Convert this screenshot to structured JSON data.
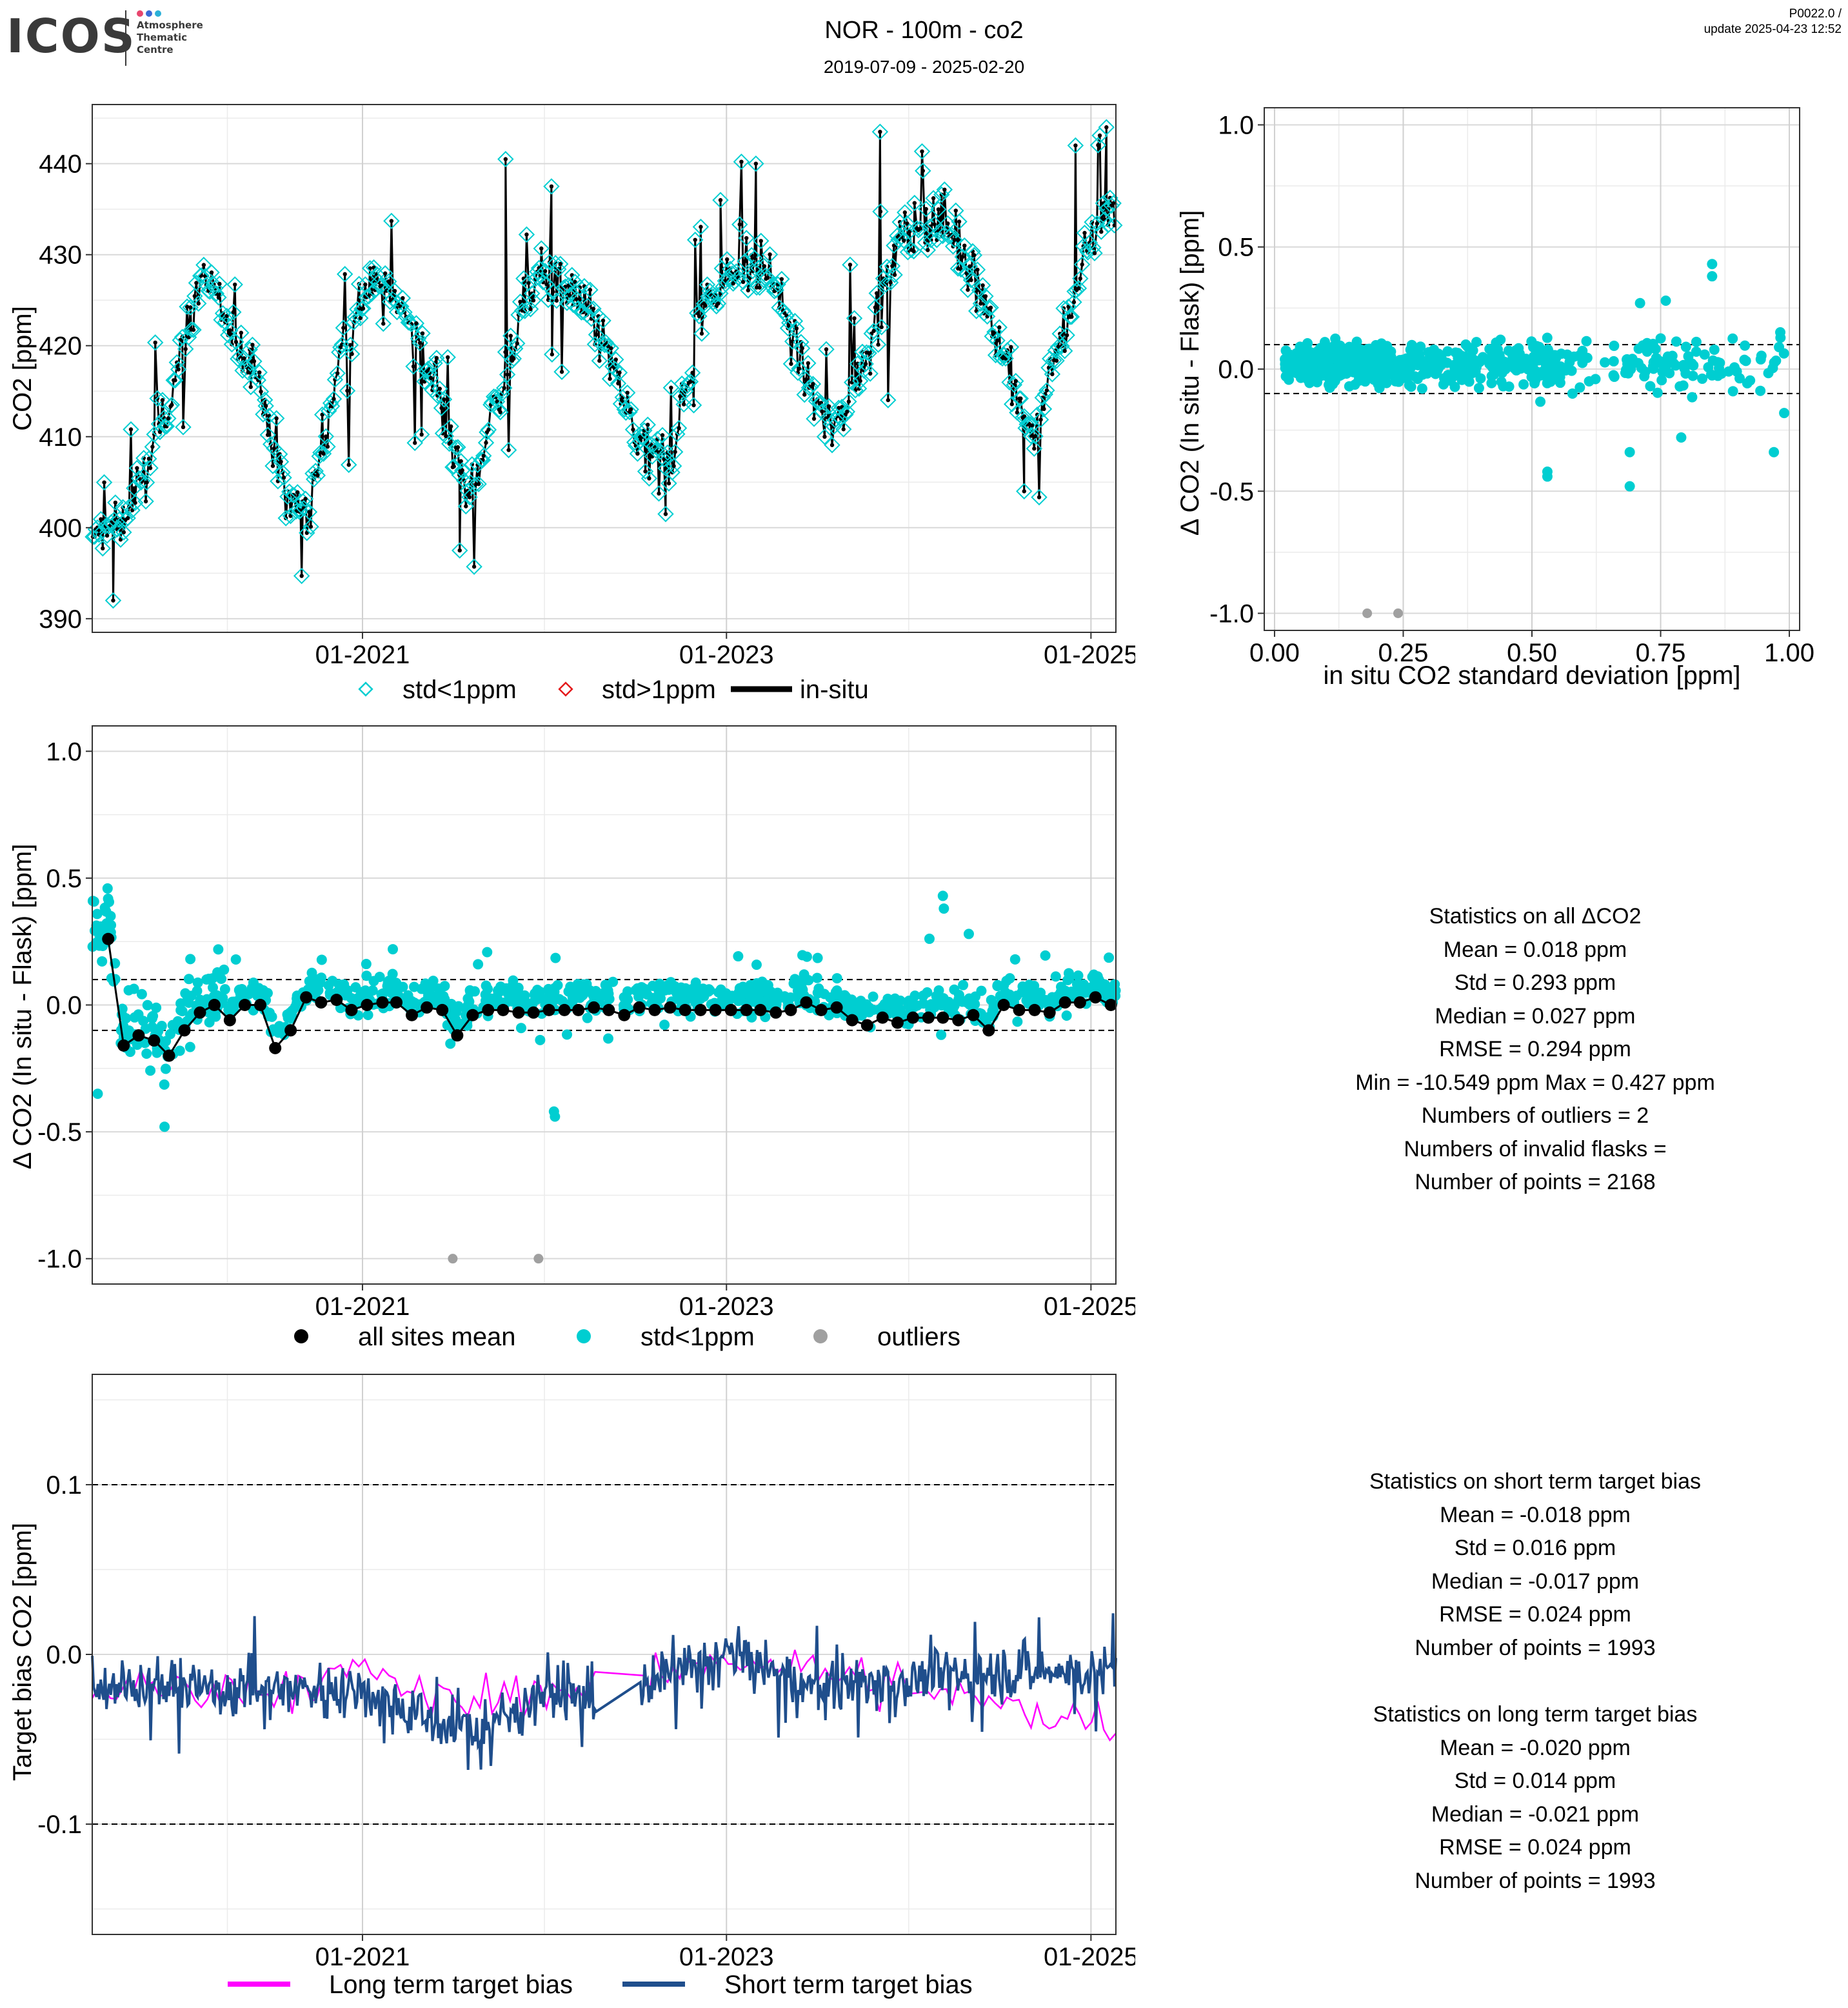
{
  "header": {
    "logo": "ICOS",
    "logo_sub": [
      "Atmosphere",
      "Thematic",
      "Centre"
    ],
    "title": "NOR - 100m - co2",
    "subtitle": "2019-07-09 - 2025-02-20",
    "version": "P0022.0 /",
    "update": "update  2025-04-23 12:52"
  },
  "colors": {
    "cyan": "#00CED1",
    "red": "#E41A1C",
    "black": "#000000",
    "grey": "#A0A0A0",
    "magenta": "#FF00FF",
    "navy": "#1F4E8C",
    "logo_dots": [
      "#e8466e",
      "#3a6bd6",
      "#2bb0d8"
    ]
  },
  "chart_data": [
    {
      "id": "timeseries",
      "type": "line",
      "xlabel": "",
      "ylabel": "CO2 [ppm]",
      "x_range": [
        "2019-07-09",
        "2025-02-20"
      ],
      "x_ticks": [
        "01-2021",
        "01-2023",
        "01-2025"
      ],
      "y_ticks": [
        390,
        400,
        410,
        420,
        430,
        440
      ],
      "ylim": [
        388.5,
        446.5
      ],
      "legend": [
        "std<1ppm",
        "std>1ppm",
        "in-situ"
      ],
      "series": [
        {
          "name": "in-situ",
          "seasonal_cycle_anchors": [
            [
              "2019-07-15",
              398
            ],
            [
              "2019-10-01",
              402
            ],
            [
              "2019-12-15",
              415
            ],
            [
              "2020-02-15",
              428
            ],
            [
              "2020-04-15",
              421
            ],
            [
              "2020-06-01",
              418
            ],
            [
              "2020-08-01",
              403
            ],
            [
              "2020-09-15",
              402
            ],
            [
              "2020-11-15",
              418
            ],
            [
              "2021-01-15",
              427
            ],
            [
              "2021-04-01",
              424
            ],
            [
              "2021-06-01",
              415
            ],
            [
              "2021-08-01",
              403
            ],
            [
              "2021-10-01",
              415
            ],
            [
              "2021-12-15",
              428
            ],
            [
              "2022-03-01",
              426
            ],
            [
              "2022-05-01",
              420
            ],
            [
              "2022-07-15",
              408
            ],
            [
              "2022-09-15",
              408
            ],
            [
              "2022-11-15",
              425
            ],
            [
              "2023-01-15",
              428
            ],
            [
              "2023-04-01",
              428
            ],
            [
              "2023-06-01",
              418
            ],
            [
              "2023-08-01",
              410
            ],
            [
              "2023-10-01",
              418
            ],
            [
              "2023-12-15",
              432
            ],
            [
              "2024-03-01",
              434
            ],
            [
              "2024-05-01",
              430
            ],
            [
              "2024-07-15",
              418
            ],
            [
              "2024-09-01",
              410
            ],
            [
              "2024-11-01",
              420
            ],
            [
              "2025-01-01",
              432
            ],
            [
              "2025-02-20",
              436
            ]
          ],
          "extremes": [
            [
              "2019-08-20",
              392
            ],
            [
              "2020-09-01",
              394.7
            ],
            [
              "2021-07-15",
              397.5
            ],
            [
              "2021-10-15",
              440.5
            ],
            [
              "2022-01-15",
              437.5
            ],
            [
              "2022-09-01",
              401.5
            ],
            [
              "2022-12-20",
              436
            ],
            [
              "2023-03-01",
              440
            ],
            [
              "2023-11-05",
              443.5
            ],
            [
              "2024-08-20",
              404
            ],
            [
              "2024-12-01",
              442
            ],
            [
              "2025-02-01",
              444
            ]
          ]
        }
      ]
    },
    {
      "id": "scatter_std",
      "type": "scatter",
      "xlabel": "in situ CO2 standard deviation [ppm]",
      "ylabel": "Δ CO2 (In situ - Flask) [ppm]",
      "x_ticks": [
        "0.00",
        "0.25",
        "0.50",
        "0.75",
        "1.00"
      ],
      "y_ticks": [
        "-1.0",
        "-0.5",
        "0.0",
        "0.5",
        "1.0"
      ],
      "xlim": [
        -0.02,
        1.02
      ],
      "ylim": [
        -1.07,
        1.07
      ],
      "reference_lines": [
        0.1,
        -0.1
      ],
      "series": [
        {
          "name": "std<1ppm",
          "notable_points": [
            [
              0.85,
              0.43
            ],
            [
              0.85,
              0.38
            ],
            [
              0.53,
              -0.42
            ],
            [
              0.53,
              -0.44
            ],
            [
              0.69,
              -0.34
            ],
            [
              0.69,
              -0.48
            ],
            [
              0.97,
              -0.34
            ],
            [
              0.99,
              -0.18
            ],
            [
              0.79,
              -0.28
            ],
            [
              0.98,
              0.09
            ],
            [
              0.76,
              0.28
            ],
            [
              0.71,
              0.27
            ]
          ]
        },
        {
          "name": "outliers",
          "values": [
            [
              0.18,
              -1.0
            ],
            [
              0.24,
              -1.0
            ]
          ]
        }
      ]
    },
    {
      "id": "delta_timeseries",
      "type": "scatter",
      "xlabel": "",
      "ylabel": "Δ CO2 (In situ - Flask) [ppm]",
      "x_range": [
        "2019-07-09",
        "2025-02-20"
      ],
      "x_ticks": [
        "01-2021",
        "01-2023",
        "01-2025"
      ],
      "y_ticks": [
        "-1.0",
        "-0.5",
        "0.0",
        "0.5",
        "1.0"
      ],
      "ylim": [
        -1.1,
        1.1
      ],
      "reference_lines": [
        0.1,
        -0.1
      ],
      "legend": [
        "all sites mean",
        "std<1ppm",
        "outliers"
      ],
      "series": [
        {
          "name": "all sites mean",
          "values": [
            [
              "2019-08-10",
              0.26
            ],
            [
              "2019-09-10",
              -0.16
            ],
            [
              "2019-10-10",
              -0.12
            ],
            [
              "2019-11-10",
              -0.14
            ],
            [
              "2019-12-10",
              -0.2
            ],
            [
              "2020-01-10",
              -0.1
            ],
            [
              "2020-02-10",
              -0.03
            ],
            [
              "2020-03-10",
              0.0
            ],
            [
              "2020-04-10",
              -0.06
            ],
            [
              "2020-05-10",
              0.0
            ],
            [
              "2020-06-10",
              0.0
            ],
            [
              "2020-07-10",
              -0.17
            ],
            [
              "2020-08-10",
              -0.1
            ],
            [
              "2020-09-10",
              0.03
            ],
            [
              "2020-10-10",
              0.01
            ],
            [
              "2020-11-10",
              0.02
            ],
            [
              "2020-12-10",
              -0.02
            ],
            [
              "2021-01-10",
              0.0
            ],
            [
              "2021-02-10",
              0.01
            ],
            [
              "2021-03-10",
              0.01
            ],
            [
              "2021-04-10",
              -0.04
            ],
            [
              "2021-05-10",
              -0.01
            ],
            [
              "2021-06-10",
              -0.02
            ],
            [
              "2021-07-10",
              -0.12
            ],
            [
              "2021-08-10",
              -0.04
            ],
            [
              "2021-09-10",
              -0.02
            ],
            [
              "2021-10-10",
              -0.02
            ],
            [
              "2021-11-10",
              -0.03
            ],
            [
              "2021-12-10",
              -0.03
            ],
            [
              "2022-01-10",
              -0.02
            ],
            [
              "2022-02-10",
              -0.02
            ],
            [
              "2022-03-10",
              -0.02
            ],
            [
              "2022-04-10",
              -0.01
            ],
            [
              "2022-05-10",
              -0.02
            ],
            [
              "2022-06-10",
              -0.04
            ],
            [
              "2022-07-10",
              -0.01
            ],
            [
              "2022-08-10",
              -0.02
            ],
            [
              "2022-09-10",
              -0.01
            ],
            [
              "2022-10-10",
              -0.02
            ],
            [
              "2022-11-10",
              -0.02
            ],
            [
              "2022-12-10",
              -0.02
            ],
            [
              "2023-01-10",
              -0.02
            ],
            [
              "2023-02-10",
              -0.02
            ],
            [
              "2023-03-10",
              -0.02
            ],
            [
              "2023-04-10",
              -0.03
            ],
            [
              "2023-05-10",
              -0.02
            ],
            [
              "2023-06-10",
              0.01
            ],
            [
              "2023-07-10",
              -0.02
            ],
            [
              "2023-08-10",
              -0.01
            ],
            [
              "2023-09-10",
              -0.06
            ],
            [
              "2023-10-10",
              -0.08
            ],
            [
              "2023-11-10",
              -0.05
            ],
            [
              "2023-12-10",
              -0.07
            ],
            [
              "2024-01-10",
              -0.05
            ],
            [
              "2024-02-10",
              -0.05
            ],
            [
              "2024-03-10",
              -0.05
            ],
            [
              "2024-04-10",
              -0.06
            ],
            [
              "2024-05-10",
              -0.04
            ],
            [
              "2024-06-10",
              -0.1
            ],
            [
              "2024-07-10",
              0.0
            ],
            [
              "2024-08-10",
              -0.02
            ],
            [
              "2024-09-10",
              -0.02
            ],
            [
              "2024-10-10",
              -0.03
            ],
            [
              "2024-11-10",
              0.01
            ],
            [
              "2024-12-10",
              0.01
            ],
            [
              "2025-01-10",
              0.03
            ],
            [
              "2025-02-10",
              0.0
            ]
          ]
        },
        {
          "name": "std<1ppm",
          "notable_points": [
            [
              "2019-07-20",
              -0.35
            ],
            [
              "2019-08-05",
              0.28
            ],
            [
              "2019-12-01",
              -0.48
            ],
            [
              "2022-01-20",
              -0.42
            ],
            [
              "2022-01-22",
              -0.44
            ],
            [
              "2024-03-10",
              0.43
            ],
            [
              "2024-03-12",
              0.38
            ],
            [
              "2024-05-01",
              0.28
            ]
          ]
        },
        {
          "name": "outliers",
          "values": [
            [
              "2021-07-01",
              -1.0
            ],
            [
              "2021-12-20",
              -1.0
            ]
          ]
        }
      ]
    },
    {
      "id": "target_bias",
      "type": "line",
      "xlabel": "",
      "ylabel": "Target bias CO2 [ppm]",
      "x_range": [
        "2019-07-09",
        "2025-02-20"
      ],
      "x_ticks": [
        "01-2021",
        "01-2023",
        "01-2025"
      ],
      "y_ticks": [
        "-0.1",
        "0.0",
        "0.1"
      ],
      "ylim": [
        -0.165,
        0.165
      ],
      "reference_lines": [
        0.1,
        -0.1
      ],
      "legend": [
        "Long term target bias",
        "Short term target bias"
      ],
      "series": [
        {
          "name": "Short term target bias",
          "mean_anchors": [
            [
              "2019-07-09",
              -0.015
            ],
            [
              "2020-01-01",
              -0.02
            ],
            [
              "2020-07-01",
              -0.02
            ],
            [
              "2021-01-01",
              -0.02
            ],
            [
              "2021-07-01",
              -0.045
            ],
            [
              "2021-10-01",
              -0.04
            ],
            [
              "2022-01-01",
              -0.02
            ],
            [
              "2022-06-01",
              -0.03
            ],
            [
              "2022-10-01",
              -0.01
            ],
            [
              "2023-01-01",
              0.0
            ],
            [
              "2023-07-01",
              -0.02
            ],
            [
              "2024-01-01",
              -0.015
            ],
            [
              "2024-07-01",
              -0.01
            ],
            [
              "2025-02-20",
              -0.01
            ]
          ]
        },
        {
          "name": "Long term target bias",
          "mean_anchors": [
            [
              "2019-07-09",
              -0.02
            ],
            [
              "2020-07-01",
              -0.02
            ],
            [
              "2021-01-01",
              -0.01
            ],
            [
              "2021-07-01",
              -0.03
            ],
            [
              "2022-01-01",
              -0.02
            ],
            [
              "2022-07-01",
              -0.02
            ],
            [
              "2023-01-01",
              0.0
            ],
            [
              "2023-07-01",
              -0.01
            ],
            [
              "2024-01-01",
              -0.02
            ],
            [
              "2024-07-01",
              -0.03
            ],
            [
              "2025-02-20",
              -0.04
            ]
          ]
        }
      ]
    }
  ],
  "stats_delta": {
    "title": "Statistics on all ΔCO2",
    "lines": [
      "Mean =  0.018 ppm",
      "Std =  0.293 ppm",
      "Median =  0.027 ppm",
      "RMSE =  0.294 ppm",
      "Min =  -10.549 ppm Max =  0.427 ppm",
      "Numbers of outliers =  2",
      "Numbers of invalid flasks =",
      "Number of points =  2168"
    ]
  },
  "stats_short": {
    "title": "Statistics on short term target bias",
    "lines": [
      "Mean =  -0.018 ppm",
      "Std =  0.016 ppm",
      "Median =  -0.017 ppm",
      "RMSE =  0.024 ppm",
      "Number of points =  1993"
    ]
  },
  "stats_long": {
    "title": "Statistics on long term target bias",
    "lines": [
      "Mean =  -0.020 ppm",
      "Std =  0.014 ppm",
      "Median =  -0.021 ppm",
      "RMSE =  0.024 ppm",
      "Number of points =  1993"
    ]
  }
}
